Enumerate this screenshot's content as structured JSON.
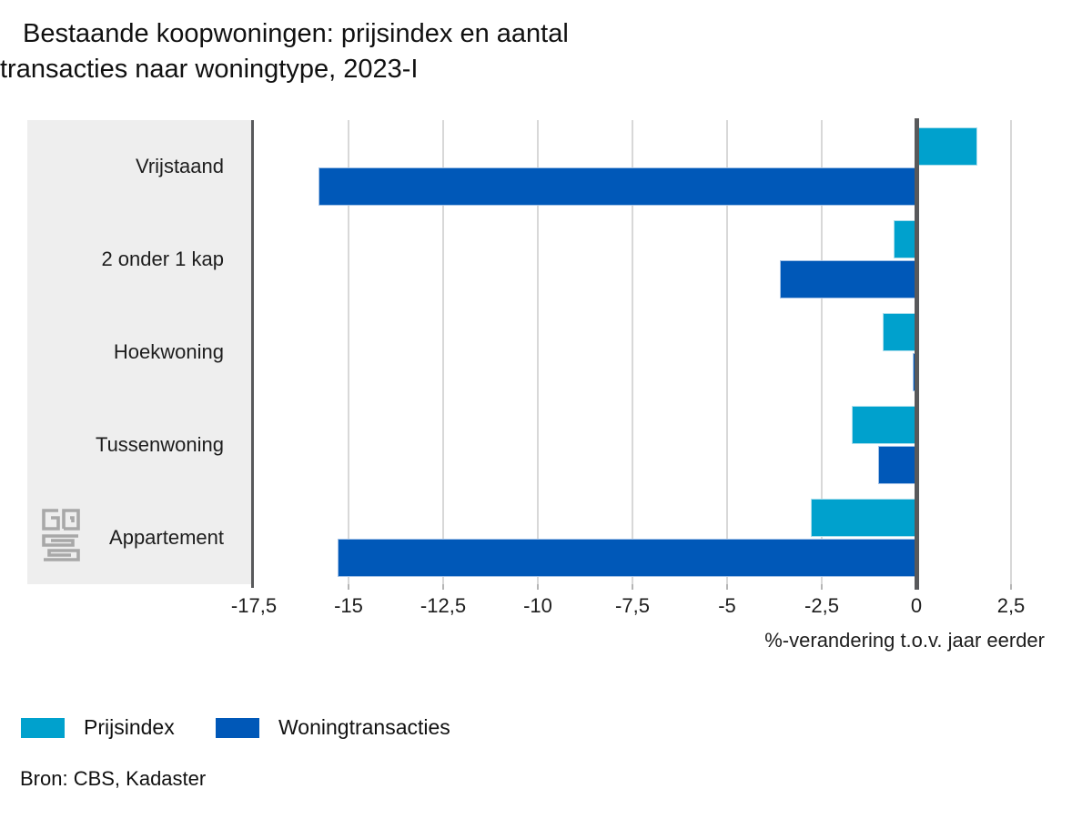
{
  "title": {
    "line1": "Bestaande koopwoningen: prijsindex en aantal",
    "line2": "transacties naar woningtype, 2023-I",
    "full": "Bestaande koopwoningen: prijsindex en aantal transacties naar woningtype, 2023-I"
  },
  "chart_data": {
    "type": "bar",
    "orientation": "horizontal",
    "categories": [
      "Vrijstaand",
      "2 onder 1 kap",
      "Hoekwoning",
      "Tussenwoning",
      "Appartement"
    ],
    "series": [
      {
        "name": "Prijsindex",
        "color": "#00a1cd",
        "values": [
          1.6,
          -0.6,
          -0.9,
          -1.7,
          -2.8
        ]
      },
      {
        "name": "Woningtransacties",
        "color": "#0058b8",
        "values": [
          -15.8,
          -3.6,
          -0.1,
          -1.0,
          -15.3
        ]
      }
    ],
    "xlabel": "%-verandering t.o.v. jaar eerder",
    "ylabel": "",
    "xlim": [
      -17.5,
      2.5
    ],
    "ticks": [
      -17.5,
      -15,
      -12.5,
      -10,
      -7.5,
      -5,
      -2.5,
      0,
      2.5
    ],
    "tick_labels": [
      "-17,5",
      "-15",
      "-12,5",
      "-10",
      "-7,5",
      "-5",
      "-2,5",
      "0",
      "2,5"
    ],
    "grid": true,
    "legend_position": "bottom-left"
  },
  "source": "Bron: CBS, Kadaster",
  "logo": {
    "name": "cbs-logo",
    "color": "#a8a8a8"
  },
  "colors": {
    "panel_background": "#eeeeee",
    "axis_line": "#58595b",
    "gridline": "#d8d8d8",
    "text": "#1d1d1d"
  }
}
